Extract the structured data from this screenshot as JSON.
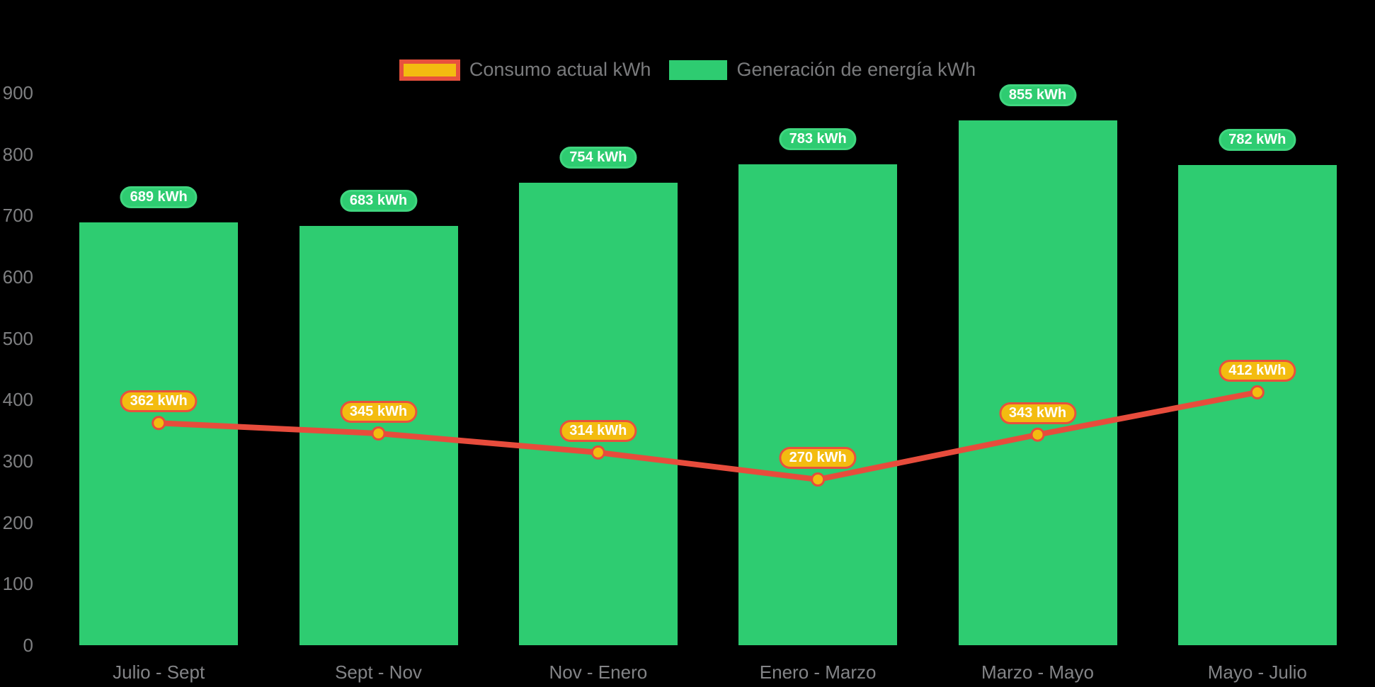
{
  "chart": {
    "background": "#000000",
    "colors": {
      "bar_green": "#2ecc71",
      "bar_label_bg": "#2ecc71",
      "bar_label_border": "#3fd67f",
      "line_red": "#e74c3c",
      "point_fill": "#f3bc10",
      "point_stroke": "#e74c3c",
      "point_label_bg": "#f3bc10",
      "point_label_border": "#e8513d",
      "pill_text": "#ffffff",
      "axis_text": "#7e7f81",
      "legend_text": "#7a7b7d"
    }
  },
  "legend": {
    "items": [
      {
        "id": "consumo",
        "label": "Consumo actual kWh",
        "swatch_fill": "#f3bc10",
        "swatch_border": "#e8513d",
        "series_type": "line"
      },
      {
        "id": "generacion",
        "label": "Generación de energía kWh",
        "swatch_fill": "#2ecc71",
        "swatch_border": null,
        "series_type": "bar"
      }
    ]
  },
  "chart_data": {
    "type": "bar",
    "subtype": "combo-bar-line",
    "title": "",
    "xlabel": "",
    "ylabel": "",
    "categories": [
      "Julio - Sept",
      "Sept - Nov",
      "Nov - Enero",
      "Enero - Marzo",
      "Marzo - Mayo",
      "Mayo - Julio"
    ],
    "series": [
      {
        "name": "Consumo actual kWh",
        "type": "line",
        "color": "#e74c3c",
        "values": [
          362,
          345,
          314,
          270,
          343,
          412
        ],
        "labels": [
          "362 kWh",
          "345 kWh",
          "314 kWh",
          "270 kWh",
          "343 kWh",
          "412 kWh"
        ]
      },
      {
        "name": "Generación de energía kWh",
        "type": "bar",
        "color": "#2ecc71",
        "values": [
          689,
          683,
          754,
          783,
          855,
          782
        ],
        "labels": [
          "689 kWh",
          "683 kWh",
          "754 kWh",
          "783 kWh",
          "855 kWh",
          "782 kWh"
        ]
      }
    ],
    "yticks": [
      0,
      100,
      200,
      300,
      400,
      500,
      600,
      700,
      800,
      900
    ],
    "ylim": [
      0,
      900
    ],
    "grid": false,
    "legend_position": "top-center"
  }
}
